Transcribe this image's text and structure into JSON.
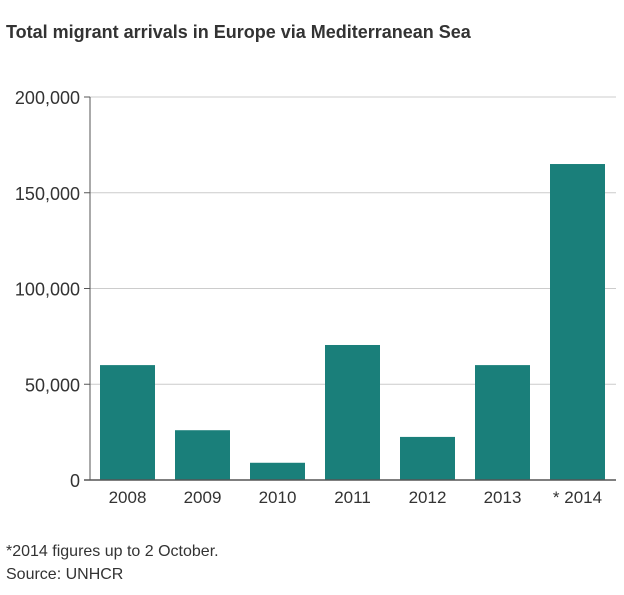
{
  "chart_data": {
    "type": "bar",
    "title": "Total migrant arrivals in Europe via Mediterranean Sea",
    "xlabel": "",
    "ylabel": "",
    "categories": [
      "2008",
      "2009",
      "2010",
      "2011",
      "2012",
      "2013",
      "* 2014"
    ],
    "values": [
      60000,
      26000,
      9000,
      70500,
      22500,
      60000,
      165000
    ],
    "ylim": [
      0,
      200000
    ],
    "yticks": [
      0,
      50000,
      100000,
      150000,
      200000
    ],
    "ytick_labels": [
      "0",
      "50,000",
      "100,000",
      "150,000",
      "200,000"
    ],
    "grid": true,
    "legend": "none",
    "bar_color": "#1a7f7a",
    "grid_color": "#cccccc",
    "axis_color": "#555555"
  },
  "footnotes": {
    "note": "*2014 figures up to 2 October.",
    "source": "Source: UNHCR"
  }
}
